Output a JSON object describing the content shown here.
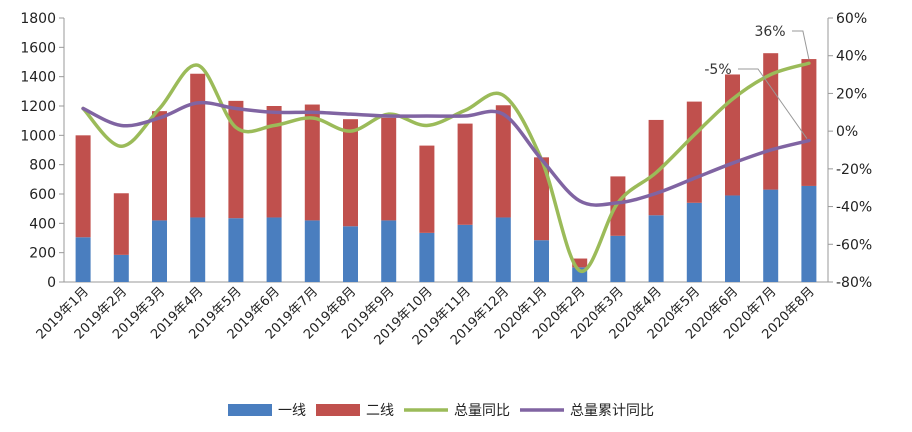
{
  "chart_data": {
    "type": "bar",
    "stacked": true,
    "categories": [
      "2019年1月",
      "2019年2月",
      "2019年3月",
      "2019年4月",
      "2019年5月",
      "2019年6月",
      "2019年7月",
      "2019年8月",
      "2019年9月",
      "2019年10月",
      "2019年11月",
      "2019年12月",
      "2020年1月",
      "2020年2月",
      "2020年3月",
      "2020年4月",
      "2020年5月",
      "2020年6月",
      "2020年7月",
      "2020年8月"
    ],
    "series": [
      {
        "name": "一线",
        "type": "bar",
        "axis": "left",
        "color": "#4a7ebf",
        "values": [
          305,
          185,
          420,
          440,
          435,
          440,
          420,
          380,
          420,
          335,
          390,
          440,
          285,
          100,
          315,
          455,
          540,
          590,
          630,
          655
        ]
      },
      {
        "name": "二线",
        "type": "bar",
        "axis": "left",
        "color": "#c0504d",
        "values": [
          695,
          420,
          745,
          980,
          800,
          760,
          790,
          730,
          700,
          595,
          690,
          765,
          565,
          60,
          405,
          650,
          690,
          825,
          930,
          865
        ]
      },
      {
        "name": "总量同比",
        "type": "line",
        "axis": "right",
        "color": "#9bbb59",
        "values": [
          12,
          -8,
          12,
          35,
          2,
          3,
          7,
          0,
          9,
          3,
          11,
          19,
          -15,
          -74,
          -38,
          -22,
          -2,
          17,
          30,
          36
        ]
      },
      {
        "name": "总量累计同比",
        "type": "line",
        "axis": "right",
        "color": "#8064a2",
        "values": [
          12,
          3,
          7,
          15,
          12,
          10,
          10,
          9,
          8,
          8,
          8,
          9,
          -15,
          -37,
          -38,
          -33,
          -25,
          -17,
          -10,
          -5
        ]
      }
    ],
    "y_left": {
      "min": 0,
      "max": 1800,
      "step": 200,
      "ticks": [
        "0",
        "200",
        "400",
        "600",
        "800",
        "1000",
        "1200",
        "1400",
        "1600",
        "1800"
      ]
    },
    "y_right": {
      "min": -80,
      "max": 60,
      "step": 20,
      "ticks": [
        "-80%",
        "-60%",
        "-40%",
        "-20%",
        "0%",
        "20%",
        "40%",
        "60%"
      ]
    },
    "annotations": [
      {
        "text": "36%",
        "target_series": "总量同比",
        "target_index": 19
      },
      {
        "text": "-5%",
        "target_series": "总量累计同比",
        "target_index": 19
      }
    ],
    "legend_position": "bottom",
    "grid": false
  }
}
